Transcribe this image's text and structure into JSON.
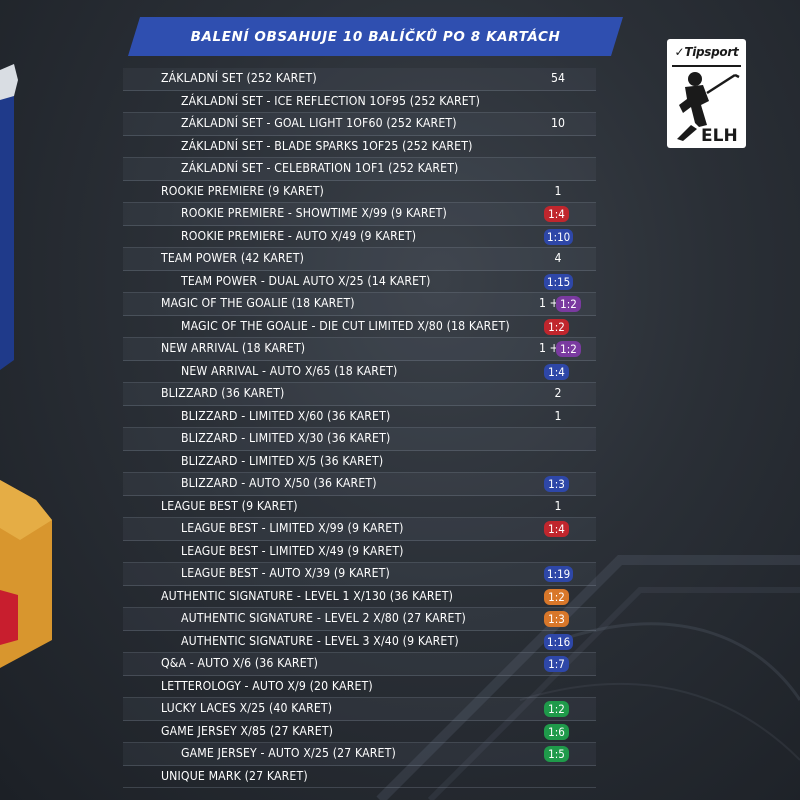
{
  "header": {
    "title": "BALENÍ OBSAHUJE 10 BALÍČKŮ PO 8 KARTÁCH"
  },
  "logo": {
    "brand": "Tipsport",
    "league": "ELH"
  },
  "colors": {
    "red": "#c0262d",
    "blue": "#2e47a8",
    "purple": "#7a3aa0",
    "orange": "#d8772a",
    "green": "#1f9a4a",
    "banner": "#2f4fb0"
  },
  "rows": [
    {
      "label": "ZÁKLADNÍ SET (252 KARET)",
      "sub": false,
      "value": "54"
    },
    {
      "label": "ZÁKLADNÍ SET - ICE REFLECTION 1OF95 (252 KARET)",
      "sub": true
    },
    {
      "label": "ZÁKLADNÍ SET - GOAL LIGHT 1OF60 (252 KARET)",
      "sub": true,
      "value": "10"
    },
    {
      "label": "ZÁKLADNÍ SET - BLADE SPARKS 1OF25 (252 KARET)",
      "sub": true
    },
    {
      "label": "ZÁKLADNÍ SET - CELEBRATION 1OF1 (252 KARET)",
      "sub": true
    },
    {
      "label": "ROOKIE PREMIERE (9 KARET)",
      "sub": false,
      "value": "1"
    },
    {
      "label": "ROOKIE PREMIERE - SHOWTIME X/99 (9 KARET)",
      "sub": true,
      "badge": "1:4",
      "color": "red"
    },
    {
      "label": "ROOKIE PREMIERE - AUTO X/49 (9 KARET)",
      "sub": true,
      "badge": "1:10",
      "color": "blue"
    },
    {
      "label": "TEAM POWER (42 KARET)",
      "sub": false,
      "value": "4"
    },
    {
      "label": "TEAM POWER - DUAL AUTO X/25 (14 KARET)",
      "sub": true,
      "badge": "1:15",
      "color": "blue"
    },
    {
      "label": "MAGIC OF THE GOALIE (18 KARET)",
      "sub": false,
      "plus": "1 +",
      "badge": "1:2",
      "color": "purple"
    },
    {
      "label": "MAGIC OF THE GOALIE - DIE CUT LIMITED X/80 (18 KARET)",
      "sub": true,
      "badge": "1:2",
      "color": "red"
    },
    {
      "label": "NEW ARRIVAL (18 KARET)",
      "sub": false,
      "plus": "1 +",
      "badge": "1:2",
      "color": "purple"
    },
    {
      "label": "NEW ARRIVAL - AUTO X/65 (18 KARET)",
      "sub": true,
      "badge": "1:4",
      "color": "blue"
    },
    {
      "label": "BLIZZARD (36 KARET)",
      "sub": false,
      "value": "2"
    },
    {
      "label": "BLIZZARD - LIMITED X/60 (36 KARET)",
      "sub": true,
      "value": "1"
    },
    {
      "label": "BLIZZARD - LIMITED X/30 (36 KARET)",
      "sub": true
    },
    {
      "label": "BLIZZARD - LIMITED X/5 (36 KARET)",
      "sub": true
    },
    {
      "label": "BLIZZARD - AUTO X/50 (36 KARET)",
      "sub": true,
      "badge": "1:3",
      "color": "blue"
    },
    {
      "label": "LEAGUE BEST (9 KARET)",
      "sub": false,
      "value": "1"
    },
    {
      "label": "LEAGUE BEST - LIMITED X/99 (9 KARET)",
      "sub": true,
      "badge": "1:4",
      "color": "red"
    },
    {
      "label": "LEAGUE BEST - LIMITED X/49 (9 KARET)",
      "sub": true
    },
    {
      "label": "LEAGUE BEST - AUTO X/39 (9 KARET)",
      "sub": true,
      "badge": "1:19",
      "color": "blue"
    },
    {
      "label": "AUTHENTIC SIGNATURE - LEVEL 1 X/130 (36 KARET)",
      "sub": false,
      "badge": "1:2",
      "color": "orange"
    },
    {
      "label": "AUTHENTIC SIGNATURE - LEVEL 2 X/80 (27 KARET)",
      "sub": true,
      "badge": "1:3",
      "color": "orange"
    },
    {
      "label": "AUTHENTIC SIGNATURE - LEVEL 3 X/40 (9 KARET)",
      "sub": true,
      "badge": "1:16",
      "color": "blue"
    },
    {
      "label": "Q&A - AUTO X/6 (36 KARET)",
      "sub": false,
      "badge": "1:7",
      "color": "blue"
    },
    {
      "label": "LETTEROLOGY - AUTO X/9 (20 KARET)",
      "sub": false
    },
    {
      "label": "LUCKY LACES X/25 (40 KARET)",
      "sub": false,
      "badge": "1:2",
      "color": "green"
    },
    {
      "label": "GAME JERSEY X/85 (27 KARET)",
      "sub": false,
      "badge": "1:6",
      "color": "green"
    },
    {
      "label": "GAME JERSEY - AUTO X/25 (27 KARET)",
      "sub": true,
      "badge": "1:5",
      "color": "green"
    },
    {
      "label": "UNIQUE MARK (27 KARET)",
      "sub": false
    }
  ]
}
